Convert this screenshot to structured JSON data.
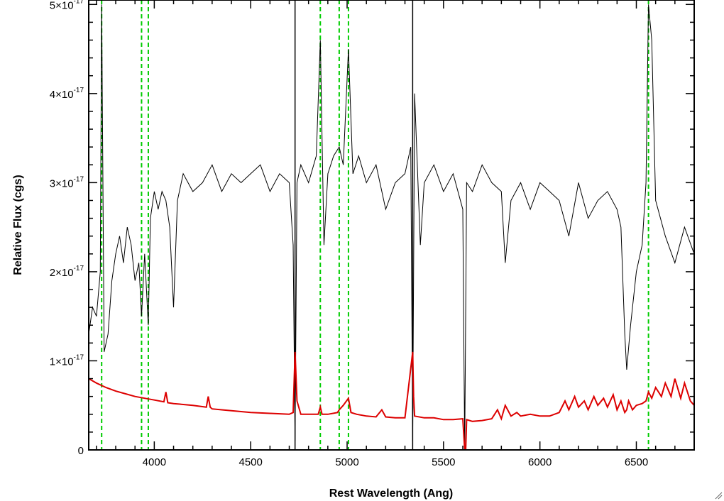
{
  "chart_data": {
    "type": "line",
    "title": "",
    "xlabel": "Rest Wavelength (Ang)",
    "ylabel": "Relative Flux (cgs)",
    "xlim": [
      3660,
      6800
    ],
    "ylim": [
      0,
      5.05e-17
    ],
    "x_ticks": [
      4000,
      4500,
      5000,
      5500,
      6000,
      6500
    ],
    "x_tick_labels": [
      "4000",
      "4500",
      "5000",
      "5500",
      "6000",
      "6500"
    ],
    "y_ticks": [
      0,
      1e-17,
      2e-17,
      3e-17,
      4e-17,
      5e-17
    ],
    "y_tick_labels": [
      {
        "mantissa": "0",
        "exponent": ""
      },
      {
        "mantissa": "1×10",
        "exponent": "-17"
      },
      {
        "mantissa": "2×10",
        "exponent": "-17"
      },
      {
        "mantissa": "3×10",
        "exponent": "-17"
      },
      {
        "mantissa": "4×10",
        "exponent": "-17"
      },
      {
        "mantissa": "5×10",
        "exponent": "-17"
      }
    ],
    "grid": false,
    "colors": {
      "flux": "#000000",
      "error": "#dd0000",
      "line_marker": "#00cc00",
      "bad_pixel": "#000000"
    },
    "emission_line_markers": [
      3727,
      3934,
      3969,
      4861,
      4959,
      5007,
      6563
    ],
    "bad_pixel_markers": [
      4730,
      5340
    ],
    "series": [
      {
        "role": "flux",
        "x": [
          3660,
          3680,
          3700,
          3720,
          3727,
          3740,
          3760,
          3780,
          3800,
          3820,
          3840,
          3860,
          3880,
          3900,
          3920,
          3934,
          3950,
          3969,
          3980,
          4000,
          4020,
          4040,
          4060,
          4080,
          4100,
          4120,
          4150,
          4200,
          4250,
          4300,
          4350,
          4400,
          4450,
          4500,
          4550,
          4600,
          4650,
          4700,
          4720,
          4730,
          4740,
          4760,
          4800,
          4840,
          4861,
          4880,
          4900,
          4930,
          4959,
          4980,
          5007,
          5030,
          5060,
          5100,
          5150,
          5200,
          5250,
          5300,
          5330,
          5340,
          5350,
          5380,
          5400,
          5450,
          5500,
          5550,
          5600,
          5610,
          5620,
          5650,
          5700,
          5750,
          5800,
          5820,
          5850,
          5900,
          5950,
          6000,
          6050,
          6100,
          6150,
          6200,
          6250,
          6300,
          6350,
          6400,
          6420,
          6440,
          6450,
          6470,
          6500,
          6530,
          6550,
          6563,
          6580,
          6600,
          6650,
          6700,
          6750,
          6800
        ],
        "y": [
          1.3e-17,
          1.6e-17,
          1.5e-17,
          2e-17,
          5e-17,
          1.1e-17,
          1.3e-17,
          1.9e-17,
          2.2e-17,
          2.4e-17,
          2.1e-17,
          2.5e-17,
          2.3e-17,
          1.9e-17,
          2.1e-17,
          1.5e-17,
          2.2e-17,
          1.4e-17,
          2.6e-17,
          2.9e-17,
          2.7e-17,
          2.9e-17,
          2.8e-17,
          2.5e-17,
          1.6e-17,
          2.8e-17,
          3.1e-17,
          2.9e-17,
          3e-17,
          3.2e-17,
          2.9e-17,
          3.1e-17,
          3e-17,
          3.1e-17,
          3.2e-17,
          2.9e-17,
          3.1e-17,
          3e-17,
          2.3e-17,
          1e-18,
          3e-17,
          3.2e-17,
          3e-17,
          3.3e-17,
          4.6e-17,
          2.3e-17,
          3.1e-17,
          3.3e-17,
          3.4e-17,
          3.2e-17,
          4.5e-17,
          3.1e-17,
          3.3e-17,
          3e-17,
          3.2e-17,
          2.7e-17,
          3e-17,
          3.1e-17,
          3.4e-17,
          1e-18,
          4e-17,
          2.3e-17,
          3e-17,
          3.2e-17,
          2.9e-17,
          3.1e-17,
          2.7e-17,
          0.0,
          3e-17,
          2.9e-17,
          3.2e-17,
          3e-17,
          2.9e-17,
          2.1e-17,
          2.8e-17,
          3e-17,
          2.7e-17,
          3e-17,
          2.9e-17,
          2.8e-17,
          2.4e-17,
          3e-17,
          2.6e-17,
          2.8e-17,
          2.9e-17,
          2.7e-17,
          2.5e-17,
          1.3e-17,
          9e-18,
          1.4e-17,
          2e-17,
          2.3e-17,
          3e-17,
          5e-17,
          4.6e-17,
          2.8e-17,
          2.4e-17,
          2.1e-17,
          2.5e-17,
          2.2e-17
        ]
      },
      {
        "role": "error",
        "x": [
          3660,
          3700,
          3750,
          3800,
          3850,
          3900,
          3950,
          4000,
          4050,
          4060,
          4070,
          4100,
          4200,
          4270,
          4280,
          4290,
          4300,
          4350,
          4400,
          4500,
          4600,
          4700,
          4720,
          4730,
          4740,
          4760,
          4800,
          4850,
          4861,
          4870,
          4900,
          4950,
          4959,
          4980,
          5007,
          5020,
          5050,
          5100,
          5150,
          5180,
          5200,
          5250,
          5300,
          5340,
          5345,
          5350,
          5400,
          5450,
          5500,
          5550,
          5600,
          5610,
          5615,
          5620,
          5650,
          5700,
          5750,
          5780,
          5800,
          5820,
          5850,
          5880,
          5900,
          5950,
          6000,
          6050,
          6100,
          6130,
          6150,
          6180,
          6200,
          6230,
          6250,
          6280,
          6300,
          6330,
          6350,
          6380,
          6400,
          6420,
          6440,
          6450,
          6460,
          6480,
          6500,
          6530,
          6550,
          6563,
          6580,
          6600,
          6630,
          6650,
          6680,
          6700,
          6730,
          6750,
          6780,
          6800
        ],
        "y": [
          8e-18,
          7.5e-18,
          7e-18,
          6.6e-18,
          6.3e-18,
          6e-18,
          5.8e-18,
          5.6e-18,
          5.4e-18,
          6.5e-18,
          5.3e-18,
          5.2e-18,
          5e-18,
          4.8e-18,
          6e-18,
          4.8e-18,
          4.6e-18,
          4.5e-18,
          4.4e-18,
          4.2e-18,
          4.1e-18,
          4e-18,
          4.2e-18,
          1.1e-17,
          5.5e-18,
          4e-18,
          4e-18,
          4e-18,
          4.8e-18,
          4e-18,
          4e-18,
          4.2e-18,
          4.5e-18,
          5e-18,
          5.8e-18,
          4.2e-18,
          4e-18,
          3.8e-18,
          3.7e-18,
          4.5e-18,
          3.7e-18,
          3.6e-18,
          3.6e-18,
          1.1e-17,
          6e-18,
          3.8e-18,
          3.6e-18,
          3.6e-18,
          3.4e-18,
          3.4e-18,
          3.5e-18,
          0.0,
          0.0,
          3.4e-18,
          3.2e-18,
          3.3e-18,
          3.5e-18,
          4.5e-18,
          3.5e-18,
          5e-18,
          3.8e-18,
          4.2e-18,
          3.8e-18,
          4e-18,
          3.8e-18,
          3.8e-18,
          4.2e-18,
          5.5e-18,
          4.5e-18,
          6e-18,
          4.8e-18,
          5.5e-18,
          4.5e-18,
          6e-18,
          5e-18,
          5.8e-18,
          4.8e-18,
          6.2e-18,
          4.5e-18,
          5.5e-18,
          4.2e-18,
          4.5e-18,
          5.5e-18,
          4.5e-18,
          5e-18,
          5.2e-18,
          5.5e-18,
          6.5e-18,
          5.8e-18,
          7e-18,
          6e-18,
          7.5e-18,
          6e-18,
          8e-18,
          5.8e-18,
          7.5e-18,
          5.5e-18,
          5e-18
        ]
      }
    ]
  }
}
